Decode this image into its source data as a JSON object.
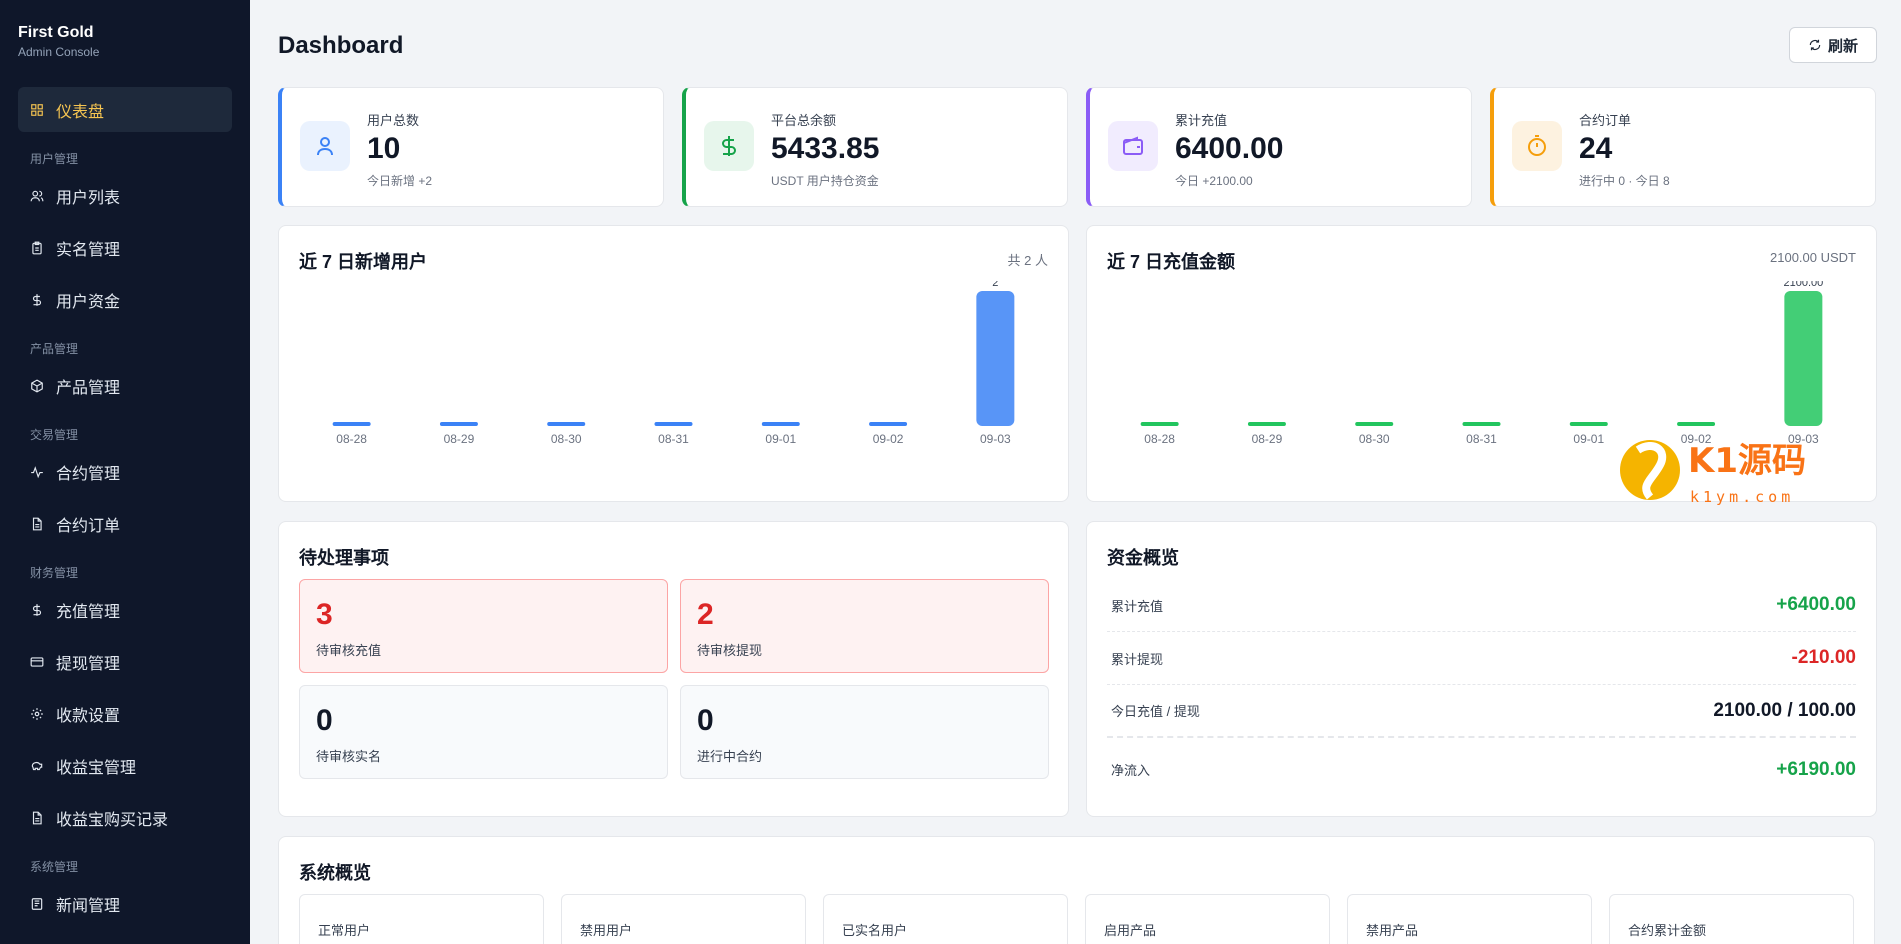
{
  "brand": {
    "title": "First Gold",
    "subtitle": "Admin Console"
  },
  "nav": {
    "dashboard": "仪表盘",
    "group_users": "用户管理",
    "user_list": "用户列表",
    "kyc": "实名管理",
    "funds": "用户资金",
    "group_products": "产品管理",
    "products": "产品管理",
    "group_trade": "交易管理",
    "contracts": "合约管理",
    "contract_orders": "合约订单",
    "group_finance": "财务管理",
    "recharge": "充值管理",
    "withdraw": "提现管理",
    "payment": "收款设置",
    "yield": "收益宝管理",
    "yield_records": "收益宝购买记录",
    "group_system": "系统管理",
    "news": "新闻管理"
  },
  "header": {
    "title": "Dashboard",
    "refresh_label": "刷新"
  },
  "stats": [
    {
      "label": "用户总数",
      "value": "10",
      "sub": "今日新增 +2",
      "color": "#3b82f6",
      "icon": "user-icon"
    },
    {
      "label": "平台总余额",
      "value": "5433.85",
      "sub": "USDT 用户持仓资金",
      "color": "#16a34a",
      "icon": "dollar-icon"
    },
    {
      "label": "累计充值",
      "value": "6400.00",
      "sub": "今日 +2100.00",
      "color": "#8b5cf6",
      "icon": "wallet-icon"
    },
    {
      "label": "合约订单",
      "value": "24",
      "sub": "进行中 0 · 今日 8",
      "color": "#f59e0b",
      "icon": "timer-icon"
    }
  ],
  "users_chart": {
    "title": "近 7 日新增用户",
    "total": "共 2 人"
  },
  "recharge_chart": {
    "title": "近 7 日充值金额",
    "total": "2100.00 USDT"
  },
  "chart_data": [
    {
      "type": "bar",
      "title": "近 7 日新增用户",
      "categories": [
        "08-28",
        "08-29",
        "08-30",
        "08-31",
        "09-01",
        "09-02",
        "09-03"
      ],
      "values": [
        0,
        0,
        0,
        0,
        0,
        0,
        2
      ],
      "value_labels": [
        "",
        "",
        "",
        "",
        "",
        "",
        "2"
      ],
      "color": "#3b82f6"
    },
    {
      "type": "bar",
      "title": "近 7 日充值金额",
      "categories": [
        "08-28",
        "08-29",
        "08-30",
        "08-31",
        "09-01",
        "09-02",
        "09-03"
      ],
      "values": [
        0,
        0,
        0,
        0,
        0,
        0,
        2100
      ],
      "value_labels": [
        "",
        "",
        "",
        "",
        "",
        "",
        "2100.00"
      ],
      "color": "#22c55e"
    }
  ],
  "pending": {
    "title": "待处理事项",
    "items": [
      {
        "num": "3",
        "label": "待审核充值"
      },
      {
        "num": "2",
        "label": "待审核提现"
      },
      {
        "num": "0",
        "label": "待审核实名"
      },
      {
        "num": "0",
        "label": "进行中合约"
      }
    ]
  },
  "funds": {
    "title": "资金概览",
    "rows": [
      {
        "label": "累计充值",
        "value": "+6400.00"
      },
      {
        "label": "累计提现",
        "value": "-210.00"
      },
      {
        "label": "今日充值 / 提现",
        "value": "2100.00 / 100.00"
      },
      {
        "label": "净流入",
        "value": "+6190.00"
      }
    ]
  },
  "system": {
    "title": "系统概览",
    "items": [
      "正常用户",
      "禁用用户",
      "已实名用户",
      "启用产品",
      "禁用产品",
      "合约累计金额"
    ]
  },
  "watermark": {
    "brand": "K1源码",
    "site": "k1ym.com"
  }
}
